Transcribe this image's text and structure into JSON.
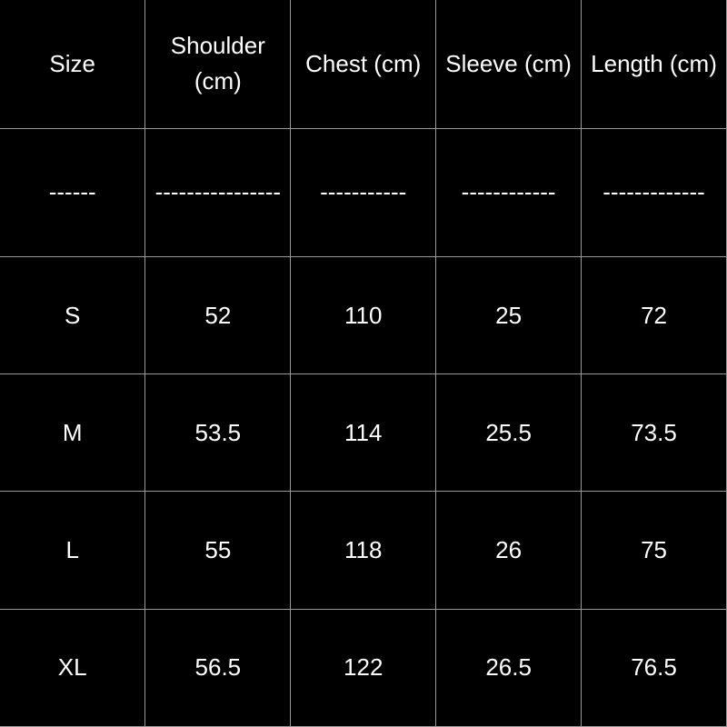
{
  "table": {
    "header": [
      "Size",
      "Shoulder (cm)",
      "Chest (cm)",
      "Sleeve (cm)",
      "Length (cm)"
    ],
    "rows": [
      [
        "------",
        "----------------",
        "-----------",
        "------------",
        "-------------"
      ],
      [
        "S",
        "52",
        "110",
        "25",
        "72"
      ],
      [
        "M",
        "53.5",
        "114",
        "25.5",
        "73.5"
      ],
      [
        "L",
        "55",
        "118",
        "26",
        "75"
      ],
      [
        "XL",
        "56.5",
        "122",
        "26.5",
        "76.5"
      ]
    ]
  }
}
